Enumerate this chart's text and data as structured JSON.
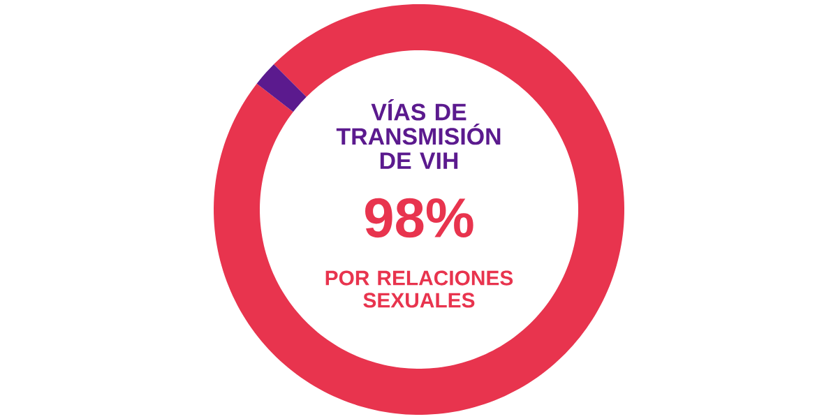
{
  "chart_data": {
    "type": "donut",
    "title": "VÍAS DE TRANSMISIÓN DE VIH",
    "categories": [
      "POR RELACIONES SEXUALES",
      null
    ],
    "values": [
      98,
      2
    ],
    "value_labels": [
      "98%",
      null
    ],
    "colors": [
      "#e8344e",
      "#5b1a8e"
    ]
  }
}
